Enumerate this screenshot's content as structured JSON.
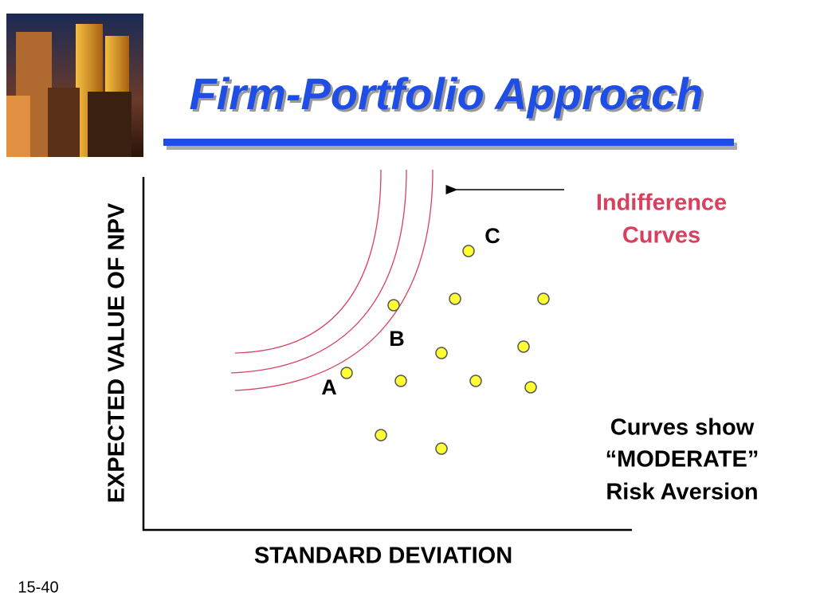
{
  "title": "Firm-Portfolio Approach",
  "slide_number": "15-40",
  "y_axis_label": "EXPECTED VALUE OF NPV",
  "x_axis_label": "STANDARD DEVIATION",
  "point_labels": [
    "A",
    "B",
    "C"
  ],
  "curves_label": [
    "Indifference",
    "Curves"
  ],
  "note": [
    "Curves show",
    "“MODERATE”",
    "Risk Aversion"
  ]
}
